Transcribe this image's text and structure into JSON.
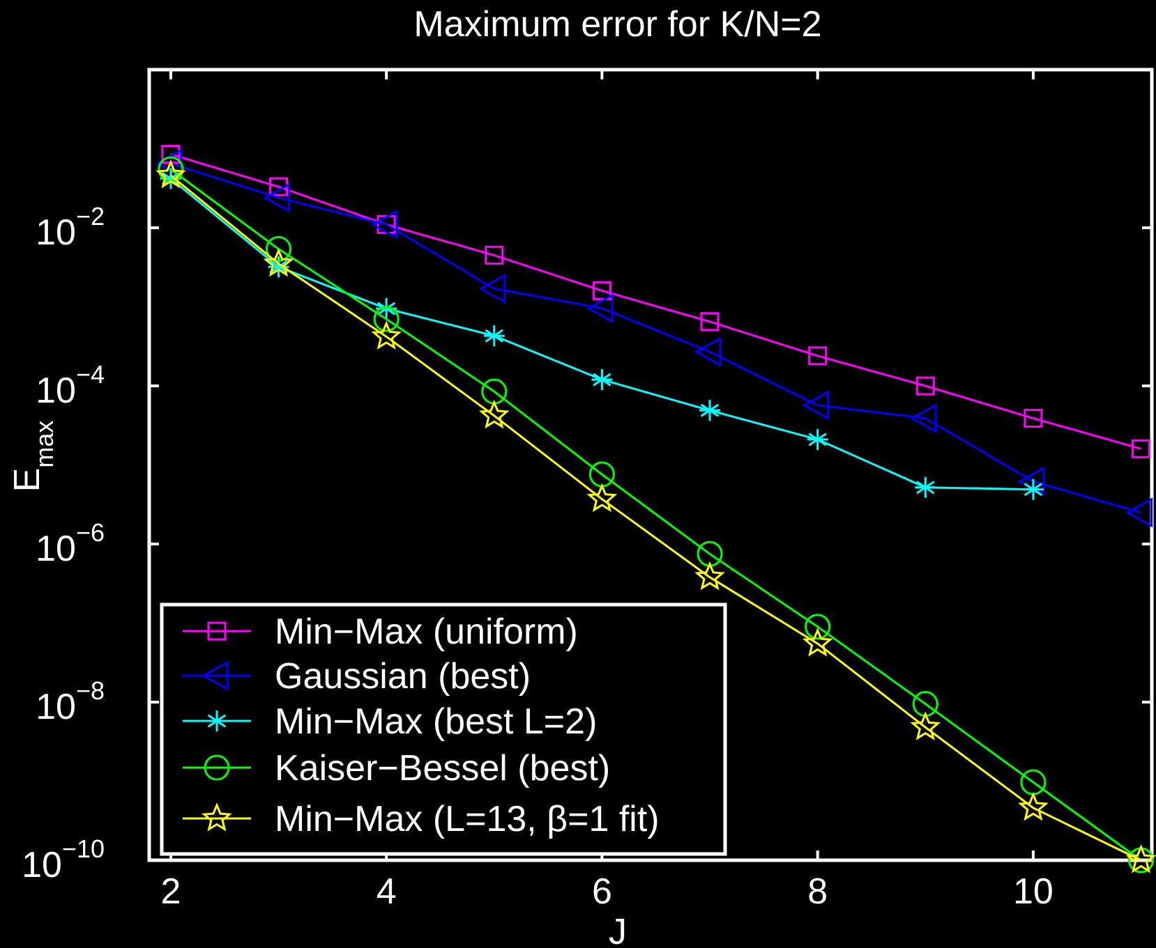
{
  "chart_data": {
    "type": "line",
    "title": "Maximum error for K/N=2",
    "xlabel": "J",
    "ylabel_main": "E",
    "ylabel_sub": "max",
    "xlim": [
      1.8,
      11.1
    ],
    "ylim": [
      1e-10,
      1
    ],
    "yscale": "log",
    "xticks": [
      "2",
      "4",
      "6",
      "8",
      "10"
    ],
    "xtick_values": [
      2,
      4,
      6,
      8,
      10
    ],
    "yticks": [
      {
        "base": "10",
        "exp": "−2",
        "value": 0.01
      },
      {
        "base": "10",
        "exp": "−4",
        "value": 0.0001
      },
      {
        "base": "10",
        "exp": "−6",
        "value": 1e-06
      },
      {
        "base": "10",
        "exp": "−8",
        "value": 1e-08
      },
      {
        "base": "10",
        "exp": "−10",
        "value": 1e-10
      }
    ],
    "grid": false,
    "legend_position": "bottom-left",
    "series": [
      {
        "name": "Min−Max (uniform)",
        "color": "#ff00ff",
        "marker": "square",
        "x": [
          2,
          3,
          4,
          5,
          6,
          7,
          8,
          9,
          10,
          11
        ],
        "y": [
          0.085,
          0.033,
          0.011,
          0.0045,
          0.0016,
          0.00065,
          0.00024,
          0.0001,
          3.9e-05,
          1.6e-05
        ]
      },
      {
        "name": "Gaussian (best)",
        "color": "#0000ff",
        "marker": "triangle-left",
        "x": [
          2,
          3,
          4,
          5,
          6,
          7,
          8,
          9,
          10,
          11
        ],
        "y": [
          0.065,
          0.024,
          0.011,
          0.0017,
          0.00096,
          0.00027,
          5.7e-05,
          3.9e-05,
          6.2e-06,
          2.5e-06
        ]
      },
      {
        "name": "Min−Max (best L=2)",
        "color": "#00ffff",
        "marker": "asterisk",
        "x": [
          2,
          3,
          4,
          5,
          6,
          7,
          8,
          9,
          10
        ],
        "y": [
          0.042,
          0.0032,
          0.00095,
          0.00043,
          0.00012,
          4.9e-05,
          2.1e-05,
          5.2e-06,
          4.9e-06
        ]
      },
      {
        "name": "Kaiser−Bessel (best)",
        "color": "#00ff00",
        "marker": "circle",
        "x": [
          2,
          3,
          4,
          5,
          6,
          7,
          8,
          9,
          10,
          11
        ],
        "y": [
          0.055,
          0.0054,
          0.0007,
          8.5e-05,
          7.6e-06,
          7.5e-07,
          9e-08,
          9.5e-09,
          9.7e-10,
          1e-10
        ]
      },
      {
        "name": "Min−Max (L=13, β=1 fit)",
        "color": "#ffff00",
        "marker": "star",
        "x": [
          2,
          3,
          4,
          5,
          6,
          7,
          8,
          9,
          10,
          11
        ],
        "y": [
          0.046,
          0.0035,
          0.00042,
          4.2e-05,
          3.7e-06,
          3.8e-07,
          5.5e-08,
          4.8e-09,
          4.6e-10,
          1e-10
        ]
      }
    ]
  }
}
